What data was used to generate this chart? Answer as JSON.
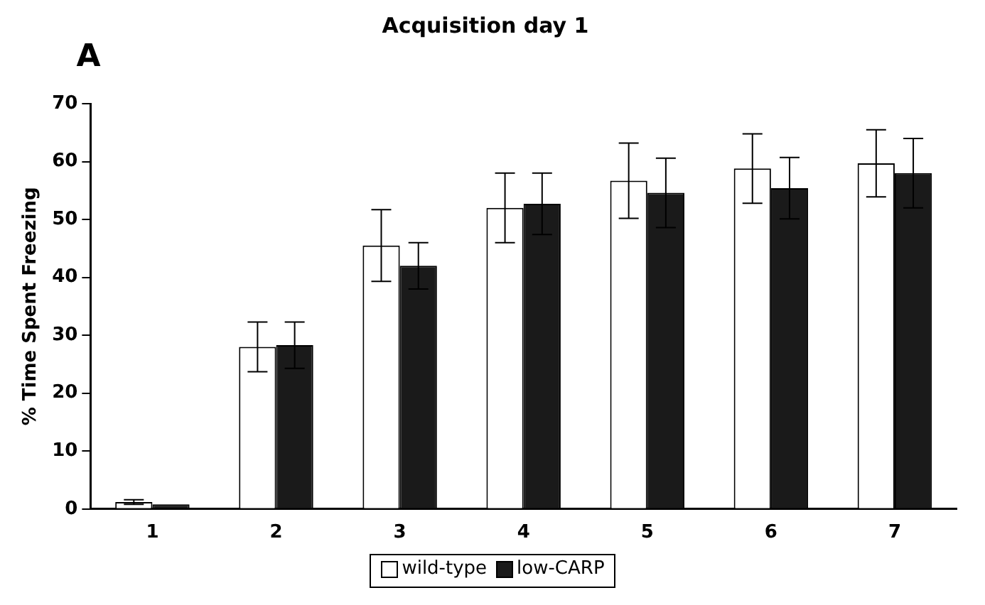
{
  "chart_data": {
    "type": "bar",
    "title": "Acquisition day 1",
    "ylabel": "% Time Spent Freezing",
    "annotations": [
      "A"
    ],
    "categories": [
      "1",
      "2",
      "3",
      "4",
      "5",
      "6",
      "7"
    ],
    "series": [
      {
        "name": "wild-type",
        "color": "#ffffff",
        "values": [
          1.2,
          28,
          45.5,
          52,
          56.7,
          58.8,
          59.7
        ],
        "errors": [
          0.4,
          4.3,
          6.2,
          6,
          6.5,
          6,
          5.8
        ]
      },
      {
        "name": "low-CARP",
        "color": "#1a1a1a",
        "values": [
          0.8,
          28.3,
          42,
          52.7,
          54.6,
          55.4,
          58
        ],
        "errors": [
          null,
          4,
          4,
          5.3,
          6,
          5.3,
          6
        ]
      }
    ],
    "ylim": [
      0,
      70
    ],
    "yticks": [
      0,
      10,
      20,
      30,
      40,
      50,
      60,
      70
    ],
    "grid": false,
    "legend": "bottom"
  }
}
